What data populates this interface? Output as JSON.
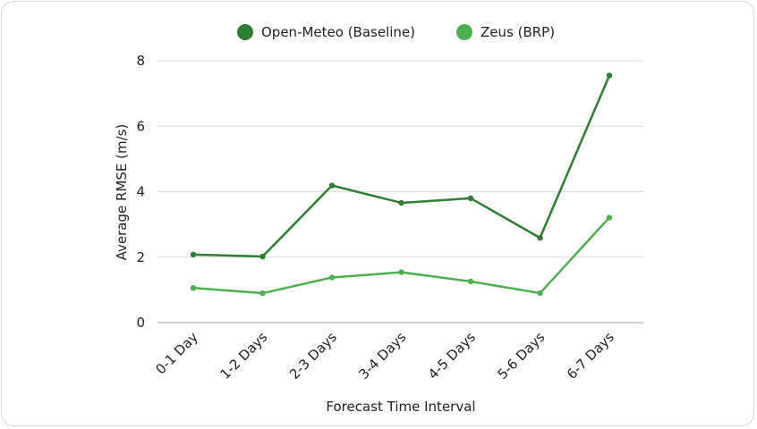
{
  "chart_data": {
    "type": "line",
    "categories": [
      "0-1 Day",
      "1-2 Days",
      "2-3 Days",
      "3-4 Days",
      "4-5 Days",
      "5-6 Days",
      "6-7 Days"
    ],
    "series": [
      {
        "name": "Open-Meteo (Baseline)",
        "color": "#2e7d32",
        "values": [
          2.08,
          2.02,
          4.19,
          3.66,
          3.8,
          2.59,
          7.55
        ]
      },
      {
        "name": "Zeus (BRP)",
        "color": "#4caf50",
        "values": [
          1.06,
          0.9,
          1.38,
          1.54,
          1.26,
          0.9,
          3.21
        ]
      }
    ],
    "xlabel": "Forecast Time Interval",
    "ylabel": "Average RMSE (m/s)",
    "ylim": [
      0,
      8
    ],
    "yticks": [
      0,
      2,
      4,
      6,
      8
    ],
    "grid": true,
    "legend_position": "top-center"
  }
}
